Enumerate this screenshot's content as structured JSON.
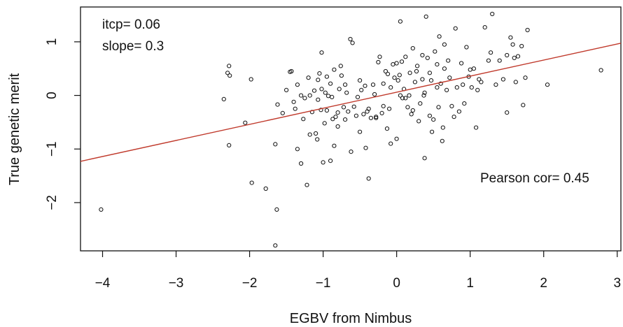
{
  "chart_data": {
    "type": "scatter",
    "title": "",
    "xlabel": "EGBV from Nimbus",
    "ylabel": "True genetic merit",
    "xlim": [
      -4.3,
      3.05
    ],
    "ylim": [
      -2.9,
      1.65
    ],
    "xticks": [
      -4,
      -3,
      -2,
      -1,
      0,
      1,
      2,
      3
    ],
    "yticks": [
      -2,
      -1,
      0,
      1
    ],
    "xtick_labels": [
      "−4",
      "−3",
      "−2",
      "−1",
      "0",
      "1",
      "2",
      "3"
    ],
    "ytick_labels": [
      "−2",
      "−1",
      "0",
      "1"
    ],
    "grid": false,
    "annotations": {
      "intercept": "itcp= 0.06",
      "slope": "slope= 0.3",
      "correlation": "Pearson cor= 0.45"
    },
    "regression_line": {
      "intercept": 0.06,
      "slope": 0.3,
      "color": "#c0392b"
    },
    "point_color": "#111111",
    "points": [
      [
        -4.02,
        -2.13
      ],
      [
        -2.35,
        -0.07
      ],
      [
        -2.3,
        0.42
      ],
      [
        -2.28,
        0.55
      ],
      [
        -2.27,
        0.37
      ],
      [
        -2.28,
        -0.93
      ],
      [
        -2.06,
        -0.51
      ],
      [
        -1.98,
        0.3
      ],
      [
        -1.97,
        -1.63
      ],
      [
        -1.78,
        -1.74
      ],
      [
        -1.65,
        -0.91
      ],
      [
        -1.63,
        -2.13
      ],
      [
        -1.65,
        -2.8
      ],
      [
        -1.62,
        -0.17
      ],
      [
        -1.55,
        -0.33
      ],
      [
        -1.5,
        0.1
      ],
      [
        -1.43,
        0.45
      ],
      [
        -1.45,
        0.44
      ],
      [
        -1.4,
        -0.12
      ],
      [
        -1.38,
        -0.25
      ],
      [
        -1.35,
        0.2
      ],
      [
        -1.3,
        0.0
      ],
      [
        -1.27,
        -0.44
      ],
      [
        -1.25,
        -0.05
      ],
      [
        -1.22,
        -1.67
      ],
      [
        -1.2,
        0.33
      ],
      [
        -1.18,
        0.0
      ],
      [
        -1.15,
        -0.31
      ],
      [
        -1.12,
        0.09
      ],
      [
        -1.1,
        -0.71
      ],
      [
        -1.08,
        -0.82
      ],
      [
        -1.07,
        0.29
      ],
      [
        -1.05,
        0.41
      ],
      [
        -1.03,
        -0.27
      ],
      [
        -1.02,
        0.8
      ],
      [
        -1.0,
        -1.25
      ],
      [
        -0.98,
        -0.52
      ],
      [
        -0.97,
        0.05
      ],
      [
        -0.95,
        -0.28
      ],
      [
        -0.93,
        -0.01
      ],
      [
        -0.9,
        0.22
      ],
      [
        -0.88,
        -0.03
      ],
      [
        -0.87,
        -0.44
      ],
      [
        -0.85,
        -0.94
      ],
      [
        -0.83,
        -0.4
      ],
      [
        -0.8,
        -0.32
      ],
      [
        -0.78,
        0.12
      ],
      [
        -0.76,
        0.55
      ],
      [
        -0.75,
        0.37
      ],
      [
        -0.72,
        -0.22
      ],
      [
        -0.7,
        0.2
      ],
      [
        -0.68,
        0.05
      ],
      [
        -0.66,
        -0.3
      ],
      [
        -0.63,
        1.05
      ],
      [
        -0.6,
        0.98
      ],
      [
        -0.58,
        -0.21
      ],
      [
        -0.55,
        -0.38
      ],
      [
        -0.53,
        -0.03
      ],
      [
        -0.5,
        -0.68
      ],
      [
        -0.48,
        0.1
      ],
      [
        -0.45,
        -0.35
      ],
      [
        -0.43,
        0.18
      ],
      [
        -0.4,
        -0.3
      ],
      [
        -0.38,
        -0.25
      ],
      [
        -0.35,
        -0.42
      ],
      [
        -0.32,
        0.2
      ],
      [
        -0.3,
        0.02
      ],
      [
        -0.28,
        -0.4
      ],
      [
        -0.25,
        0.62
      ],
      [
        -0.23,
        0.72
      ],
      [
        -0.2,
        -0.33
      ],
      [
        -0.18,
        -0.2
      ],
      [
        -0.15,
        0.45
      ],
      [
        -0.13,
        -0.62
      ],
      [
        -0.1,
        -0.25
      ],
      [
        -0.08,
        0.15
      ],
      [
        -0.05,
        0.58
      ],
      [
        -0.03,
        0.33
      ],
      [
        0.0,
        -0.81
      ],
      [
        0.02,
        0.28
      ],
      [
        0.04,
        0.38
      ],
      [
        0.05,
        1.38
      ],
      [
        0.07,
        0.63
      ],
      [
        0.08,
        -0.05
      ],
      [
        0.1,
        0.12
      ],
      [
        0.12,
        0.72
      ],
      [
        0.15,
        -0.22
      ],
      [
        0.17,
        0.0
      ],
      [
        0.18,
        0.42
      ],
      [
        0.2,
        -0.35
      ],
      [
        0.22,
        -0.28
      ],
      [
        0.25,
        0.25
      ],
      [
        0.27,
        0.45
      ],
      [
        0.28,
        0.55
      ],
      [
        0.3,
        -0.48
      ],
      [
        0.32,
        -0.15
      ],
      [
        0.35,
        0.3
      ],
      [
        0.37,
        0.0
      ],
      [
        0.38,
        -1.17
      ],
      [
        0.4,
        1.47
      ],
      [
        0.42,
        0.7
      ],
      [
        0.45,
        -0.38
      ],
      [
        0.47,
        0.28
      ],
      [
        0.48,
        -0.68
      ],
      [
        0.5,
        -0.45
      ],
      [
        0.52,
        0.82
      ],
      [
        0.55,
        0.58
      ],
      [
        0.57,
        -0.22
      ],
      [
        0.58,
        1.1
      ],
      [
        0.6,
        0.22
      ],
      [
        0.62,
        -0.85
      ],
      [
        0.63,
        -0.6
      ],
      [
        0.65,
        0.5
      ],
      [
        0.68,
        0.1
      ],
      [
        0.7,
        0.65
      ],
      [
        0.72,
        0.33
      ],
      [
        0.75,
        -0.2
      ],
      [
        0.78,
        -0.4
      ],
      [
        0.8,
        1.25
      ],
      [
        0.82,
        0.15
      ],
      [
        0.85,
        -0.3
      ],
      [
        0.88,
        0.6
      ],
      [
        0.9,
        0.2
      ],
      [
        0.92,
        -0.15
      ],
      [
        0.95,
        0.9
      ],
      [
        0.98,
        0.35
      ],
      [
        1.02,
        0.15
      ],
      [
        1.05,
        0.5
      ],
      [
        1.08,
        -0.6
      ],
      [
        1.12,
        0.3
      ],
      [
        1.15,
        0.25
      ],
      [
        1.2,
        1.27
      ],
      [
        1.25,
        0.65
      ],
      [
        1.28,
        0.8
      ],
      [
        1.3,
        1.52
      ],
      [
        1.35,
        0.2
      ],
      [
        1.4,
        0.65
      ],
      [
        1.45,
        0.3
      ],
      [
        1.5,
        0.75
      ],
      [
        1.55,
        1.08
      ],
      [
        1.58,
        0.95
      ],
      [
        1.62,
        0.25
      ],
      [
        1.65,
        0.73
      ],
      [
        1.7,
        0.92
      ],
      [
        1.72,
        -0.18
      ],
      [
        1.75,
        0.33
      ],
      [
        1.78,
        1.22
      ],
      [
        1.5,
        -0.32
      ],
      [
        2.05,
        0.2
      ],
      [
        2.78,
        0.47
      ],
      [
        -0.28,
        -0.42
      ],
      [
        0.12,
        -0.05
      ],
      [
        0.38,
        0.05
      ],
      [
        -0.62,
        -1.05
      ],
      [
        -1.18,
        -0.73
      ],
      [
        -1.02,
        0.12
      ],
      [
        -0.95,
        0.35
      ],
      [
        -0.12,
        0.4
      ],
      [
        0.22,
        0.88
      ],
      [
        0.65,
        0.95
      ],
      [
        1.1,
        0.1
      ],
      [
        -0.8,
        -0.58
      ],
      [
        -0.5,
        0.28
      ],
      [
        0.05,
        0.0
      ],
      [
        -0.7,
        -0.45
      ],
      [
        -0.38,
        -1.55
      ],
      [
        -0.9,
        -1.22
      ],
      [
        0.55,
        0.15
      ],
      [
        -1.35,
        -1.0
      ],
      [
        -1.07,
        -0.08
      ],
      [
        -0.18,
        0.22
      ],
      [
        1.6,
        0.7
      ],
      [
        -0.42,
        -0.98
      ],
      [
        0.35,
        0.75
      ],
      [
        -0.85,
        0.48
      ],
      [
        0.0,
        0.6
      ],
      [
        -0.08,
        -0.9
      ],
      [
        -1.3,
        -1.27
      ],
      [
        0.45,
        0.42
      ],
      [
        1.0,
        0.48
      ]
    ]
  }
}
